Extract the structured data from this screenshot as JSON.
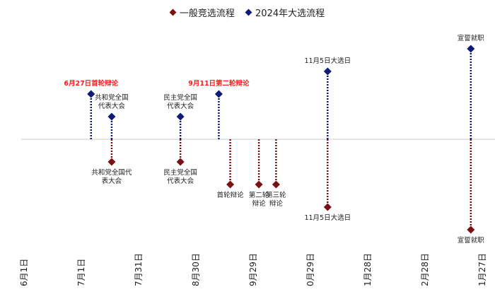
{
  "colors": {
    "general": "#7b1010",
    "election2024": "#0d1a7a",
    "highlight": "#ff1a1a",
    "baseline": "#c8c8c8",
    "text": "#222222"
  },
  "legend": [
    {
      "label": "一般竞选流程",
      "series": "general"
    },
    {
      "label": "2024年大选流程",
      "series": "election2024"
    }
  ],
  "chart_data": {
    "type": "scatter",
    "x_axis": {
      "type": "date",
      "ticks": [
        "6月1日",
        "7月1日",
        "7月31日",
        "8月30日",
        "9月29日",
        "0月29日",
        "1月28日",
        "2月28日",
        "1月27日"
      ]
    },
    "series": [
      {
        "name": "2024年大选流程",
        "key": "election2024",
        "points": [
          {
            "tick": 1.17,
            "level": 1.0,
            "label": "6月27日首轮辩论",
            "highlight": true
          },
          {
            "tick": 1.53,
            "level": 0.5,
            "label": "共和党全国\n代表大会"
          },
          {
            "tick": 2.73,
            "level": 0.5,
            "label": "民主党全国\n代表大会"
          },
          {
            "tick": 3.4,
            "level": 1.0,
            "label": "9月11日第二轮辩论",
            "highlight": true
          },
          {
            "tick": 5.3,
            "level": 1.5,
            "label": "11月5日大选日"
          },
          {
            "tick": 7.8,
            "level": 2.0,
            "label": "宣誓就职"
          }
        ]
      },
      {
        "name": "一般竞选流程",
        "key": "general",
        "points": [
          {
            "tick": 1.53,
            "level": 0.5,
            "label": "共和党全国代\n表大会"
          },
          {
            "tick": 2.73,
            "level": 0.5,
            "label": "民主党全国\n代表大会"
          },
          {
            "tick": 3.6,
            "level": 1.0,
            "label": "首轮辩论"
          },
          {
            "tick": 4.1,
            "level": 1.0,
            "label": "第二轮\n辩论"
          },
          {
            "tick": 4.4,
            "level": 1.0,
            "label": "第三轮\n辩论"
          },
          {
            "tick": 5.3,
            "level": 1.5,
            "label": "11月5日大选日"
          },
          {
            "tick": 7.8,
            "level": 2.0,
            "label": "宣誓就职"
          }
        ]
      }
    ]
  }
}
